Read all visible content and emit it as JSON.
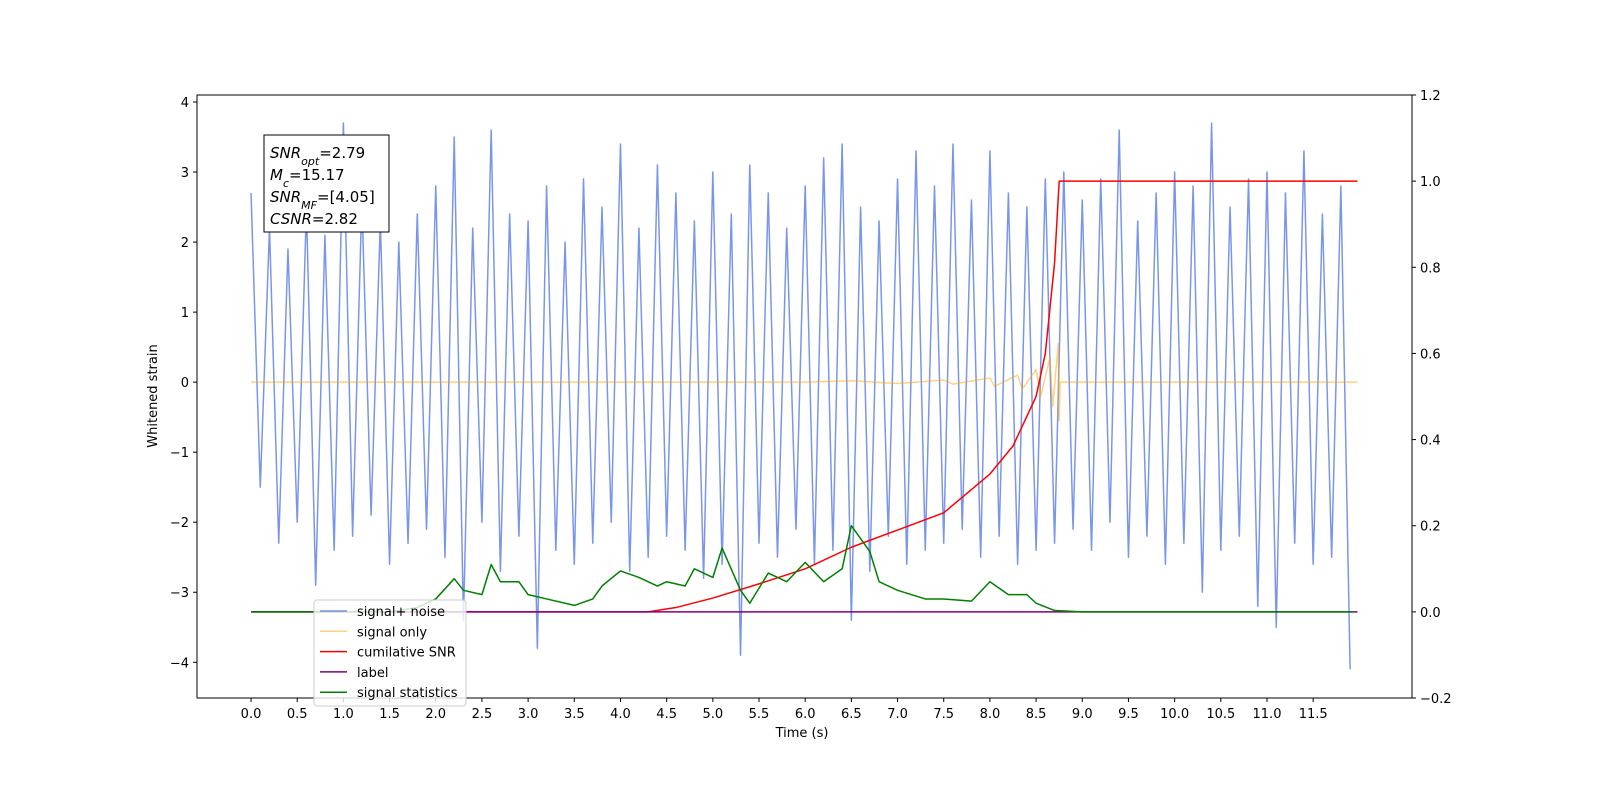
{
  "chart_data": {
    "type": "line",
    "xlabel": "Time (s)",
    "ylabel": "Whitened strain",
    "xlim": [
      -0.585,
      12.57
    ],
    "ylim": [
      -4.51,
      4.1
    ],
    "y2lim": [
      -0.2,
      1.2
    ],
    "xticks": [
      {
        "value": 0,
        "label": "0.0"
      },
      {
        "value": 0.5,
        "label": "0.5"
      },
      {
        "value": 1,
        "label": "1.0"
      },
      {
        "value": 1.5,
        "label": "1.5"
      },
      {
        "value": 2,
        "label": "2.0"
      },
      {
        "value": 2.5,
        "label": "2.5"
      },
      {
        "value": 3,
        "label": "3.0"
      },
      {
        "value": 3.5,
        "label": "3.5"
      },
      {
        "value": 4,
        "label": "4.0"
      },
      {
        "value": 4.5,
        "label": "4.5"
      },
      {
        "value": 5,
        "label": "5.0"
      },
      {
        "value": 5.5,
        "label": "5.5"
      },
      {
        "value": 6,
        "label": "6.0"
      },
      {
        "value": 6.5,
        "label": "6.5"
      },
      {
        "value": 7,
        "label": "7.0"
      },
      {
        "value": 7.5,
        "label": "7.5"
      },
      {
        "value": 8,
        "label": "8.0"
      },
      {
        "value": 8.5,
        "label": "8.5"
      },
      {
        "value": 9,
        "label": "9.0"
      },
      {
        "value": 9.5,
        "label": "9.5"
      },
      {
        "value": 10,
        "label": "10.0"
      },
      {
        "value": 10.5,
        "label": "10.5"
      },
      {
        "value": 11,
        "label": "11.0"
      },
      {
        "value": 11.5,
        "label": "11.5"
      }
    ],
    "yticks": [
      {
        "value": -4,
        "label": "−4"
      },
      {
        "value": -3,
        "label": "−3"
      },
      {
        "value": -2,
        "label": "−2"
      },
      {
        "value": -1,
        "label": "−1"
      },
      0,
      1,
      2,
      3,
      4
    ],
    "y2ticks": [
      {
        "value": -0.2,
        "label": "−0.2"
      },
      {
        "value": 0,
        "label": "0.0"
      },
      {
        "value": 0.2,
        "label": "0.2"
      },
      {
        "value": 0.4,
        "label": "0.4"
      },
      {
        "value": 0.6,
        "label": "0.6"
      },
      {
        "value": 0.8,
        "label": "0.8"
      },
      {
        "value": 1,
        "label": "1.0"
      },
      {
        "value": 1.2,
        "label": "1.2"
      }
    ],
    "annotations": [
      {
        "main": "SNR",
        "sub": "opt",
        "rest": "=2.79"
      },
      {
        "main": "M",
        "sub": "c",
        "rest": "=15.17"
      },
      {
        "main": "SNR",
        "sub": "MF",
        "rest": "=[4.05]"
      },
      {
        "main": "CSNR",
        "rest": "=2.82"
      }
    ],
    "series": [
      {
        "name": "signal+ noise",
        "color": "#4169e1",
        "alpha": 0.7,
        "x": [
          0,
          0.1,
          0.2,
          0.3,
          0.4,
          0.5,
          0.6,
          0.7,
          0.8,
          0.9,
          1,
          1.1,
          1.2,
          1.3,
          1.4,
          1.5,
          1.6,
          1.7,
          1.8,
          1.9,
          2,
          2.1,
          2.2,
          2.3,
          2.4,
          2.5,
          2.6,
          2.7,
          2.8,
          2.9,
          3,
          3.1,
          3.2,
          3.3,
          3.4,
          3.5,
          3.6,
          3.7,
          3.8,
          3.9,
          4,
          4.1,
          4.2,
          4.3,
          4.4,
          4.5,
          4.6,
          4.7,
          4.8,
          4.9,
          5,
          5.1,
          5.2,
          5.3,
          5.4,
          5.5,
          5.6,
          5.7,
          5.8,
          5.9,
          6,
          6.1,
          6.2,
          6.3,
          6.4,
          6.5,
          6.6,
          6.7,
          6.8,
          6.9,
          7,
          7.1,
          7.2,
          7.3,
          7.4,
          7.5,
          7.6,
          7.7,
          7.8,
          7.9,
          8,
          8.1,
          8.2,
          8.3,
          8.4,
          8.5,
          8.6,
          8.7,
          8.8,
          8.9,
          9,
          9.1,
          9.2,
          9.3,
          9.4,
          9.5,
          9.6,
          9.7,
          9.8,
          9.9,
          10,
          10.1,
          10.2,
          10.3,
          10.4,
          10.5,
          10.6,
          10.7,
          10.8,
          10.9,
          11,
          11.1,
          11.2,
          11.3,
          11.4,
          11.5,
          11.6,
          11.7,
          11.8,
          11.9
        ],
        "values": [
          2.7,
          -1.5,
          2.2,
          -2.3,
          1.9,
          -2.0,
          2.5,
          -2.9,
          2.1,
          -2.4,
          3.7,
          -2.2,
          2.6,
          -1.9,
          2.3,
          -2.6,
          2.0,
          -2.3,
          2.4,
          -2.1,
          2.8,
          -2.5,
          3.5,
          -3.4,
          2.2,
          -2.0,
          3.6,
          -2.7,
          2.4,
          -2.2,
          2.3,
          -3.8,
          2.8,
          -2.4,
          2.0,
          -2.6,
          2.9,
          -2.3,
          2.5,
          -2.0,
          3.4,
          -2.7,
          2.2,
          -2.5,
          3.1,
          -2.2,
          2.7,
          -2.4,
          2.3,
          -2.8,
          3.0,
          -2.6,
          2.4,
          -3.9,
          3.1,
          -2.3,
          2.7,
          -2.5,
          2.2,
          -2.1,
          2.8,
          -2.6,
          3.2,
          -2.4,
          3.4,
          -3.4,
          2.5,
          -2.7,
          2.3,
          -2.2,
          2.9,
          -2.6,
          3.3,
          -2.4,
          2.8,
          -2.3,
          3.4,
          -2.1,
          2.6,
          -2.5,
          3.3,
          -2.2,
          2.7,
          -2.6,
          2.5,
          -2.4,
          2.9,
          -2.3,
          3.0,
          -2.1,
          2.6,
          -2.4,
          2.9,
          -2.0,
          3.6,
          -2.5,
          2.3,
          -2.2,
          2.7,
          -2.6,
          3.0,
          -2.3,
          2.8,
          -3.0,
          3.7,
          -2.4,
          2.5,
          -2.2,
          2.9,
          -3.2,
          3.0,
          -3.5,
          2.7,
          -2.3,
          3.3,
          -2.6,
          2.4,
          -2.5,
          2.8,
          -4.1
        ]
      },
      {
        "name": "signal only",
        "color": "#ffa500",
        "alpha": 0.5,
        "x": [
          0,
          6,
          6.5,
          7,
          7.5,
          7.6,
          8,
          8.05,
          8.3,
          8.35,
          8.5,
          8.55,
          8.65,
          8.68,
          8.74,
          8.75,
          8.76,
          11.98
        ],
        "values": [
          0,
          0,
          0.02,
          -0.02,
          0.03,
          -0.03,
          0.06,
          -0.06,
          0.1,
          -0.1,
          0.18,
          -0.2,
          0.35,
          -0.35,
          0.55,
          -0.55,
          0,
          0
        ]
      },
      {
        "name": "cumilative SNR",
        "color": "#ff0000",
        "axis": "y2",
        "x": [
          0,
          4.3,
          4.6,
          5,
          5.5,
          6,
          6.5,
          7,
          7.5,
          8,
          8.25,
          8.5,
          8.6,
          8.7,
          8.75,
          11.98
        ],
        "values": [
          0,
          0,
          0.01,
          0.032,
          0.065,
          0.1,
          0.15,
          0.19,
          0.23,
          0.32,
          0.385,
          0.5,
          0.6,
          0.81,
          1.0,
          1.0
        ]
      },
      {
        "name": "label",
        "color": "#800080",
        "axis": "y2",
        "x": [
          0,
          11.98
        ],
        "values": [
          0,
          0
        ]
      },
      {
        "name": "signal statistics",
        "color": "#008000",
        "axis": "y2",
        "x": [
          0,
          1.5,
          1.8,
          2.0,
          2.2,
          2.3,
          2.5,
          2.6,
          2.7,
          2.9,
          3.0,
          3.2,
          3.5,
          3.7,
          3.8,
          4.0,
          4.2,
          4.4,
          4.5,
          4.7,
          4.8,
          5.0,
          5.1,
          5.3,
          5.4,
          5.6,
          5.8,
          6.0,
          6.2,
          6.4,
          6.5,
          6.7,
          6.8,
          7.0,
          7.3,
          7.5,
          7.8,
          8.0,
          8.2,
          8.4,
          8.5,
          8.7,
          9.0,
          11.94
        ],
        "values": [
          0,
          0,
          0.01,
          0.03,
          0.077,
          0.05,
          0.04,
          0.11,
          0.07,
          0.07,
          0.04,
          0.03,
          0.015,
          0.03,
          0.06,
          0.095,
          0.08,
          0.06,
          0.07,
          0.06,
          0.1,
          0.08,
          0.148,
          0.05,
          0.02,
          0.09,
          0.07,
          0.115,
          0.07,
          0.1,
          0.2,
          0.14,
          0.07,
          0.05,
          0.03,
          0.03,
          0.025,
          0.07,
          0.04,
          0.04,
          0.02,
          0.003,
          0,
          0
        ]
      }
    ]
  }
}
